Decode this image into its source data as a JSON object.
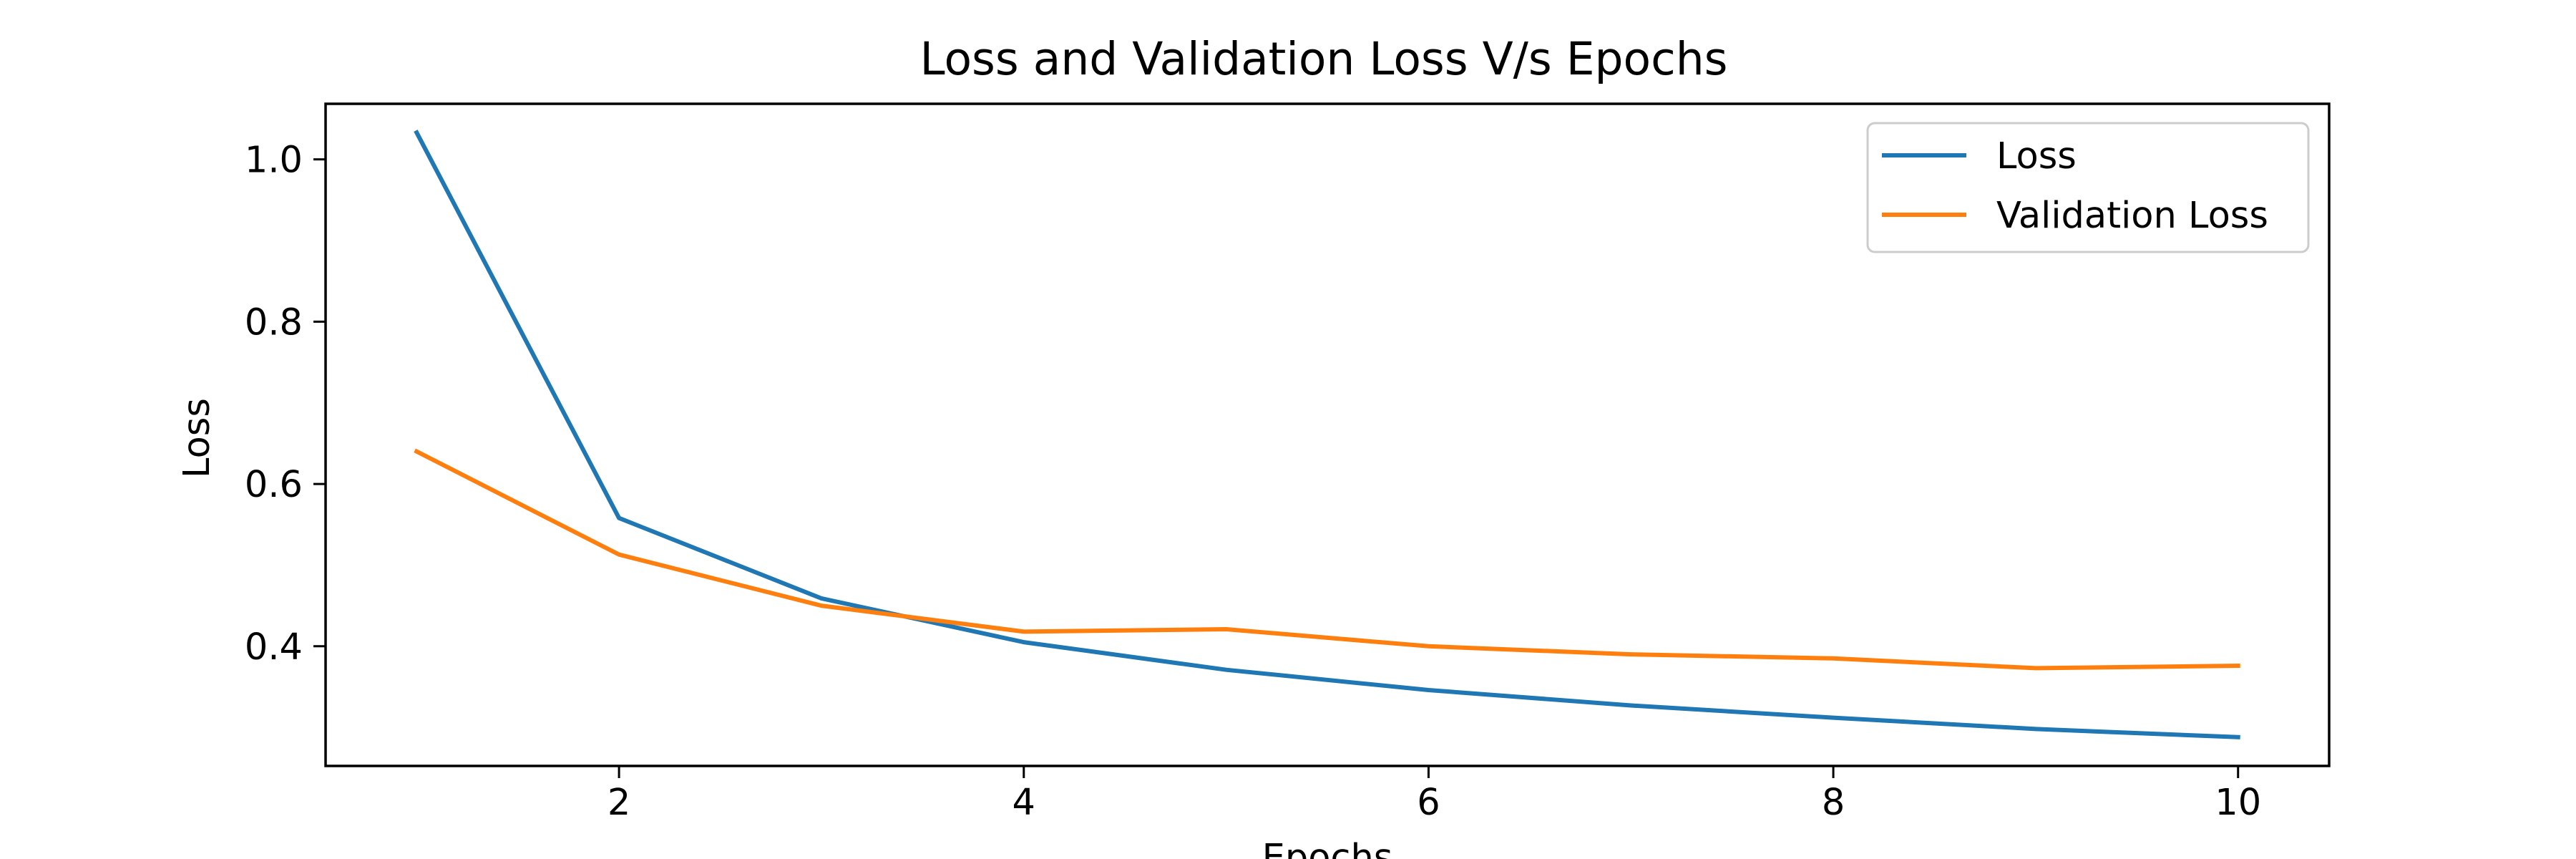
{
  "chart_data": {
    "type": "line",
    "title": "Loss and Validation Loss V/s Epochs",
    "xlabel": "Epochs",
    "ylabel": "Loss",
    "x": [
      1,
      2,
      3,
      4,
      5,
      6,
      7,
      8,
      9,
      10
    ],
    "series": [
      {
        "name": "Loss",
        "color": "#1f77b4",
        "values": [
          1.033,
          0.558,
          0.459,
          0.405,
          0.371,
          0.346,
          0.327,
          0.312,
          0.298,
          0.288
        ]
      },
      {
        "name": "Validation Loss",
        "color": "#ff7f0e",
        "values": [
          0.64,
          0.513,
          0.45,
          0.418,
          0.421,
          0.4,
          0.39,
          0.385,
          0.373,
          0.376
        ]
      }
    ],
    "xlim": [
      0.55,
      10.45
    ],
    "ylim": [
      0.2525,
      1.0685
    ],
    "xticks": [
      2,
      4,
      6,
      8,
      10
    ],
    "yticks": [
      0.4,
      0.6,
      0.8,
      1.0
    ],
    "ytick_labels": [
      "0.4",
      "0.6",
      "0.8",
      "1.0"
    ],
    "grid": false,
    "legend": "upper right"
  }
}
